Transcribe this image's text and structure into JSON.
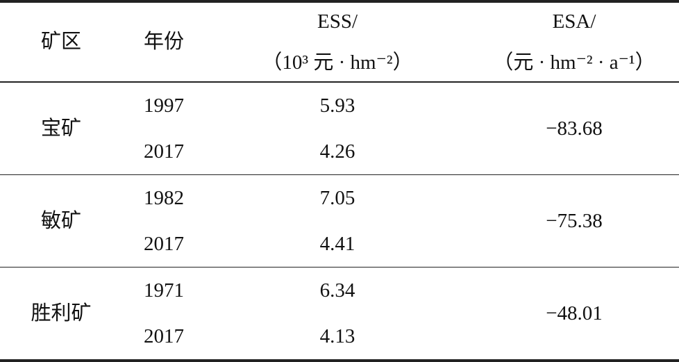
{
  "header": [
    {
      "line1": "矿区"
    },
    {
      "line1": "年份"
    },
    {
      "line1": "ESS/",
      "line2": "（10³ 元 · hm⁻²）"
    },
    {
      "line1": "ESA/",
      "line2": "（元 · hm⁻² · a⁻¹）"
    }
  ],
  "groups": [
    {
      "mine": "宝矿",
      "years": [
        "1997",
        "2017"
      ],
      "ess": [
        "5.93",
        "4.26"
      ],
      "esa": "−83.68"
    },
    {
      "mine": "敏矿",
      "years": [
        "1982",
        "2017"
      ],
      "ess": [
        "7.05",
        "4.41"
      ],
      "esa": "−75.38"
    },
    {
      "mine": "胜利矿",
      "years": [
        "1971",
        "2017"
      ],
      "ess": [
        "6.34",
        "4.13"
      ],
      "esa": "−48.01"
    }
  ]
}
